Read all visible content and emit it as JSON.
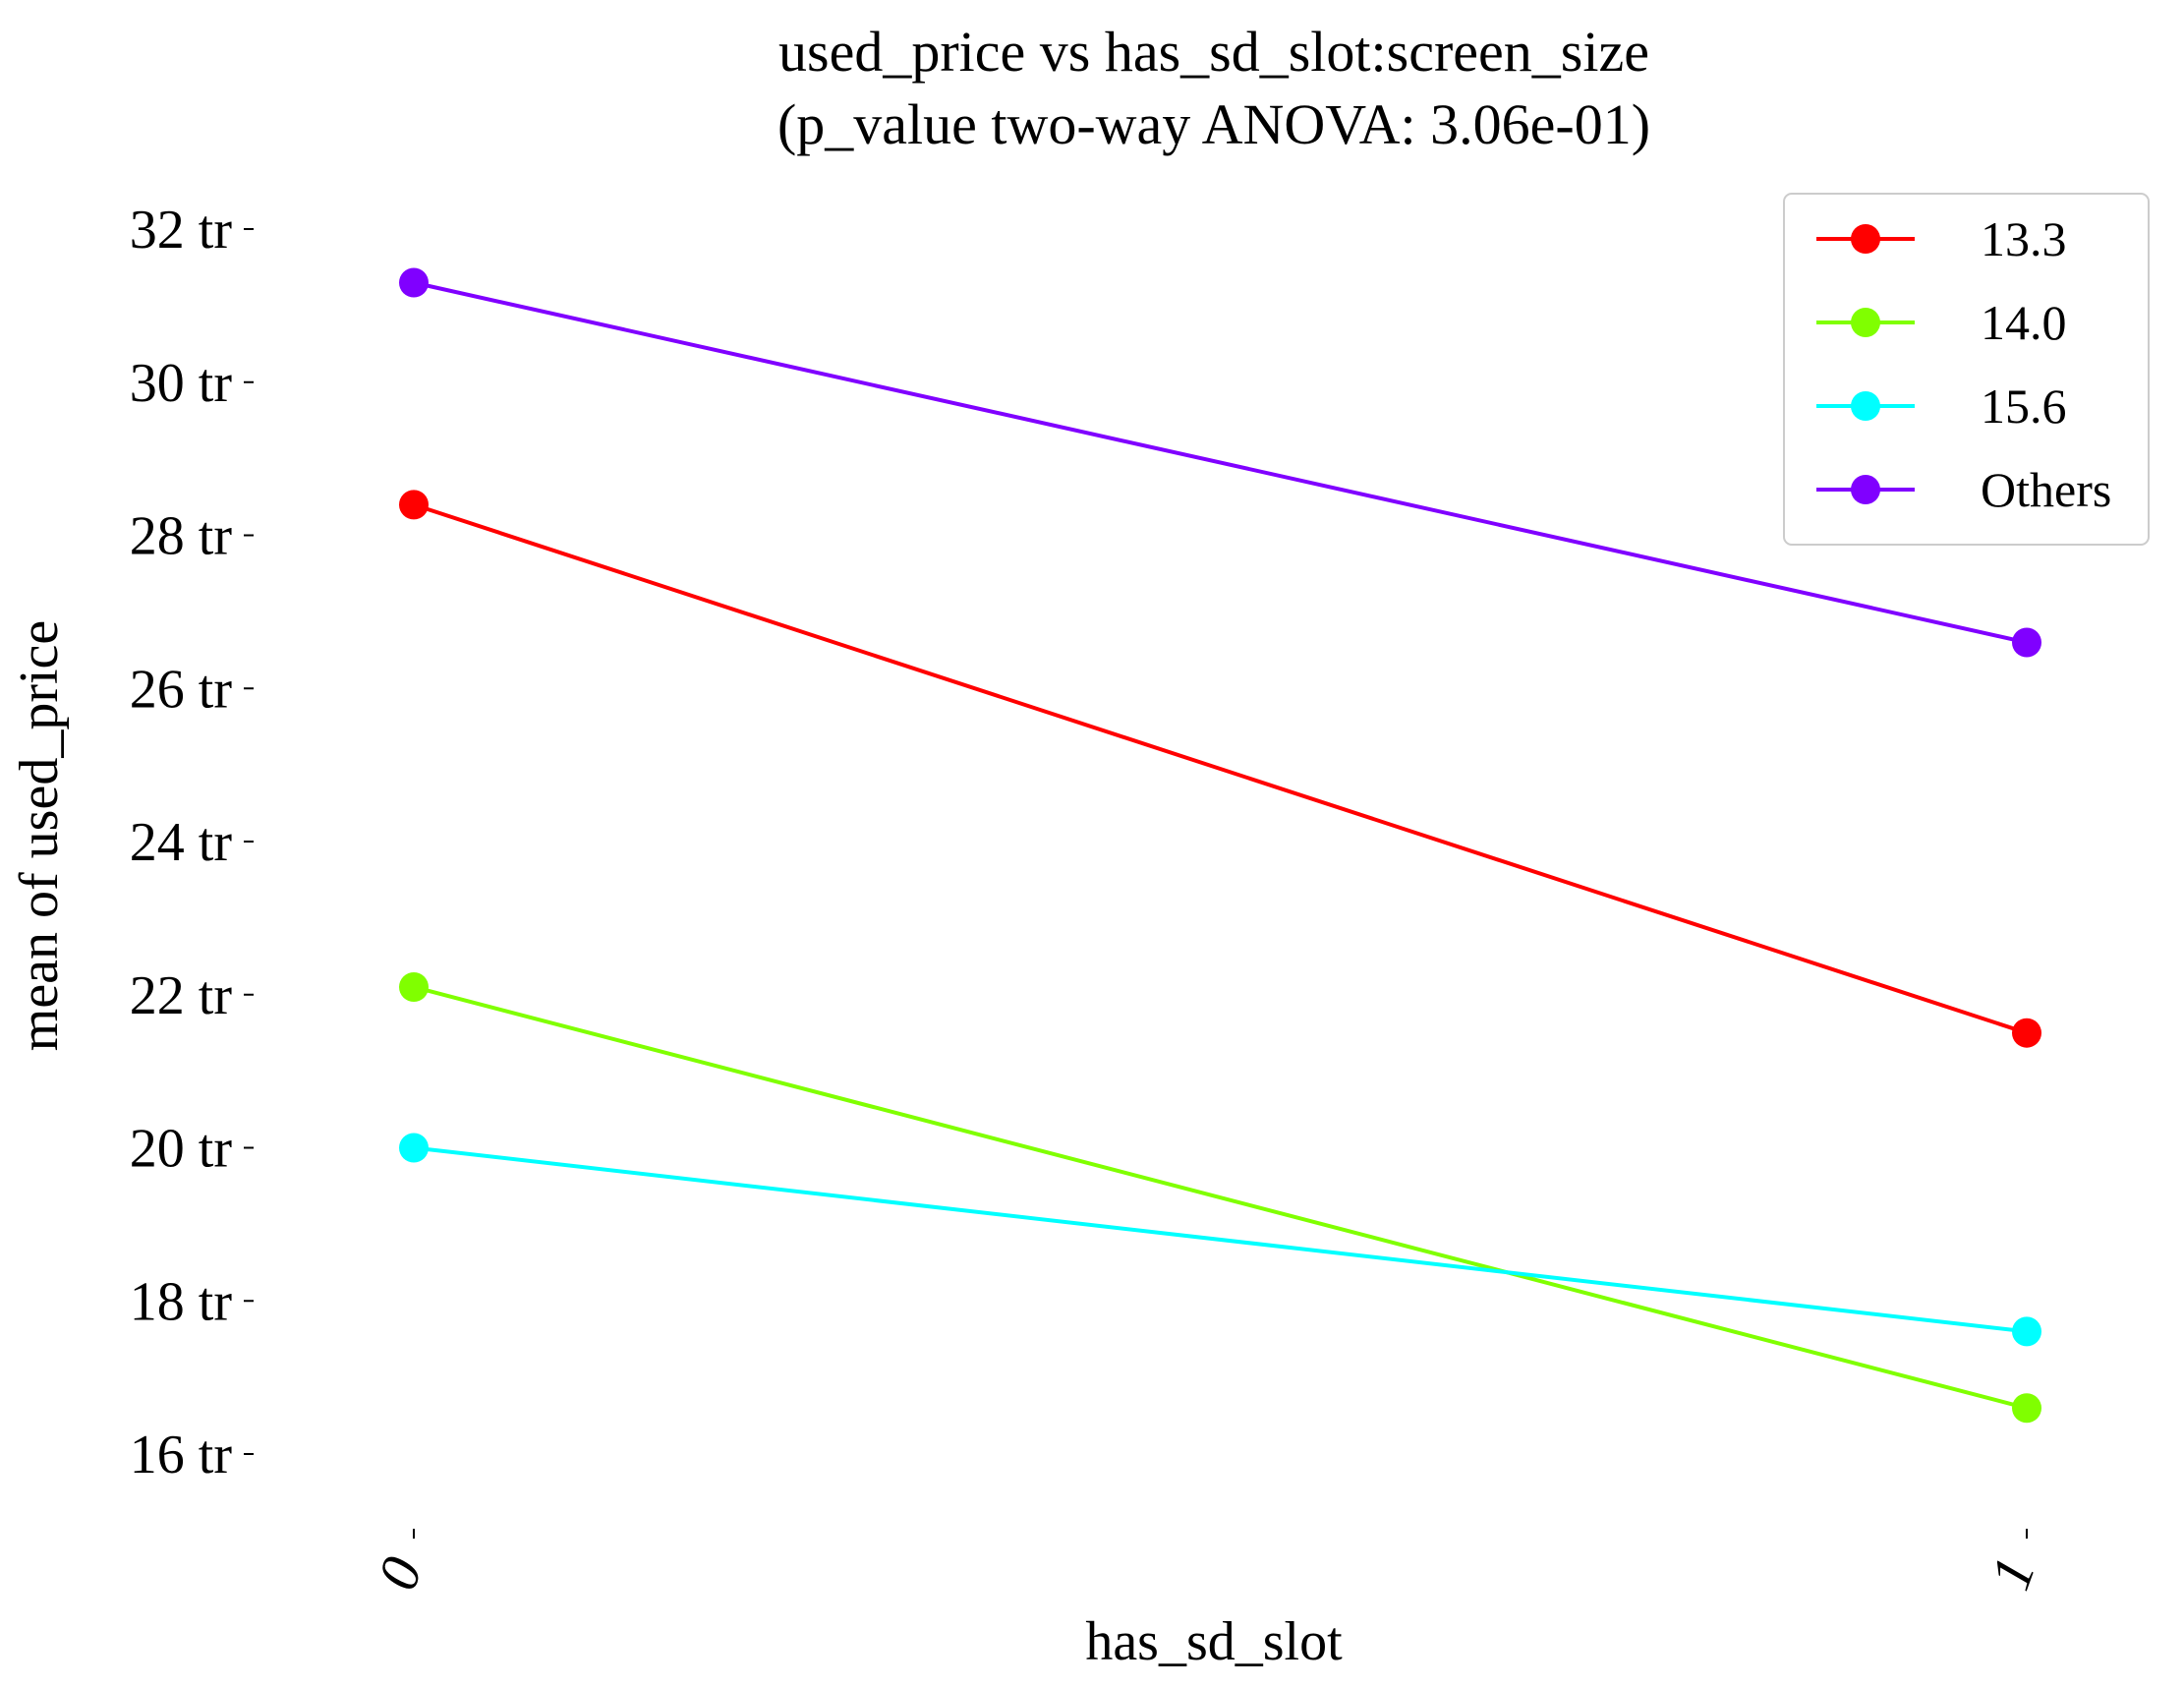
{
  "chart_data": {
    "type": "line",
    "title": "used_price vs has_sd_slot:screen_size",
    "subtitle": "(p_value two-way ANOVA: 3.06e-01)",
    "xlabel": "has_sd_slot",
    "ylabel": "mean of used_price",
    "categories": [
      "0",
      "1"
    ],
    "y_ticks": [
      16,
      18,
      20,
      22,
      24,
      26,
      28,
      30,
      32
    ],
    "y_tick_labels": [
      "16 tr",
      "18 tr",
      "20 tr",
      "22 tr",
      "24 tr",
      "26 tr",
      "28 tr",
      "30 tr",
      "32 tr"
    ],
    "ylim": [
      15,
      33
    ],
    "grid": false,
    "legend_position": "top-right",
    "series": [
      {
        "name": "13.3",
        "color": "#ff0000",
        "values": [
          28.4,
          21.5
        ]
      },
      {
        "name": "14.0",
        "color": "#80ff00",
        "values": [
          22.1,
          16.6
        ]
      },
      {
        "name": "15.6",
        "color": "#00ffff",
        "values": [
          20.0,
          17.6
        ]
      },
      {
        "name": "Others",
        "color": "#8000ff",
        "values": [
          31.3,
          26.6
        ]
      }
    ]
  }
}
